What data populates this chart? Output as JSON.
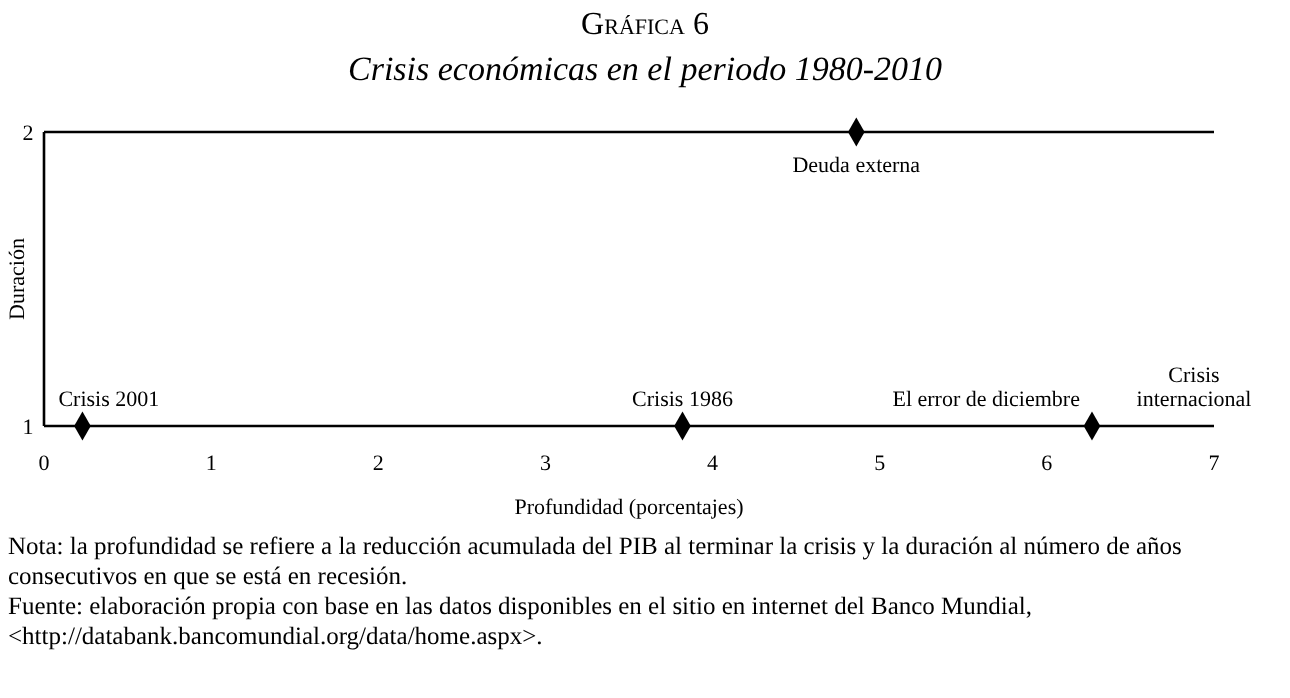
{
  "chart_data": {
    "type": "scatter",
    "title": "Gráfica 6",
    "subtitle": "Crisis económicas en el periodo 1980-2010",
    "xlabel": "Profundidad (porcentajes)",
    "ylabel": "Duración",
    "x": [
      0.23,
      3.82,
      4.86,
      6.27
    ],
    "series": [
      {
        "color": "#000000",
        "values": [
          1,
          1,
          2,
          1
        ]
      }
    ],
    "marker": "diamond",
    "xlim": [
      0,
      7
    ],
    "xticks": [
      0,
      1,
      2,
      3,
      4,
      5,
      6,
      7
    ],
    "ylim": [
      1,
      2
    ],
    "yticks": [
      1,
      2
    ],
    "annotations": [
      {
        "text": "Crisis 2001",
        "x": 0.23,
        "y": 1
      },
      {
        "text": "Crisis 1986",
        "x": 3.82,
        "y": 1
      },
      {
        "text": "Deuda externa",
        "x": 4.86,
        "y": 2
      },
      {
        "text": "El error de diciembre",
        "x": 6.27,
        "y": 1
      },
      "Crisis internacional",
      "Nota: la profundidad se refiere a la reducción acumulada del PIB al terminar la crisis y la duración al número de años consecutivos en que se está en recesión.",
      "Fuente: elaboración propia con base en las datos disponibles en el sitio en internet del Banco Mundial, <http://databank.bancomundial.org/data/home.aspx>."
    ]
  }
}
